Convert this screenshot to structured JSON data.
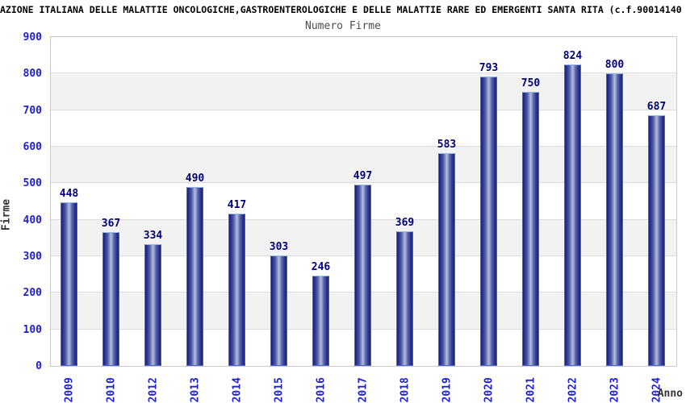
{
  "header": {
    "title": "AZIONE ITALIANA DELLE MALATTIE ONCOLOGICHE,GASTROENTEROLOGICHE E DELLE MALATTIE RARE ED EMERGENTI SANTA RITA (c.f.90014140",
    "subtitle": "Numero Firme"
  },
  "chart_data": {
    "type": "bar",
    "title": "Numero Firme",
    "categories": [
      "2009",
      "2010",
      "2012",
      "2013",
      "2014",
      "2015",
      "2016",
      "2017",
      "2018",
      "2019",
      "2020",
      "2021",
      "2022",
      "2023",
      "2024"
    ],
    "values": [
      448,
      367,
      334,
      490,
      417,
      303,
      246,
      497,
      369,
      583,
      793,
      750,
      824,
      800,
      687
    ],
    "xlabel": "Anno",
    "ylabel": "Firme",
    "ylim": [
      0,
      900
    ],
    "ytick_step": 100,
    "yticks": [
      0,
      100,
      200,
      300,
      400,
      500,
      600,
      700,
      800,
      900
    ],
    "grid": true,
    "banded_background": true,
    "bar_value_labels_shown": true,
    "legend": "none"
  },
  "colors": {
    "bar_edge_dark": "#1b2380",
    "bar_center_light": "#b4bcdd",
    "bar_border": "#4e66d2",
    "bar_border_top": "#8fb6ea",
    "value_label": "#000078",
    "tick_label": "#2020d4",
    "grid_line": "#dcdcdc",
    "band_gray": "#f2f2f2",
    "band_white": "#ffffff",
    "frame": "#c9c9c9",
    "title": "#000000",
    "subtitle": "#4d4d4d",
    "axis_title": "#333333",
    "background": "#ffffff"
  }
}
